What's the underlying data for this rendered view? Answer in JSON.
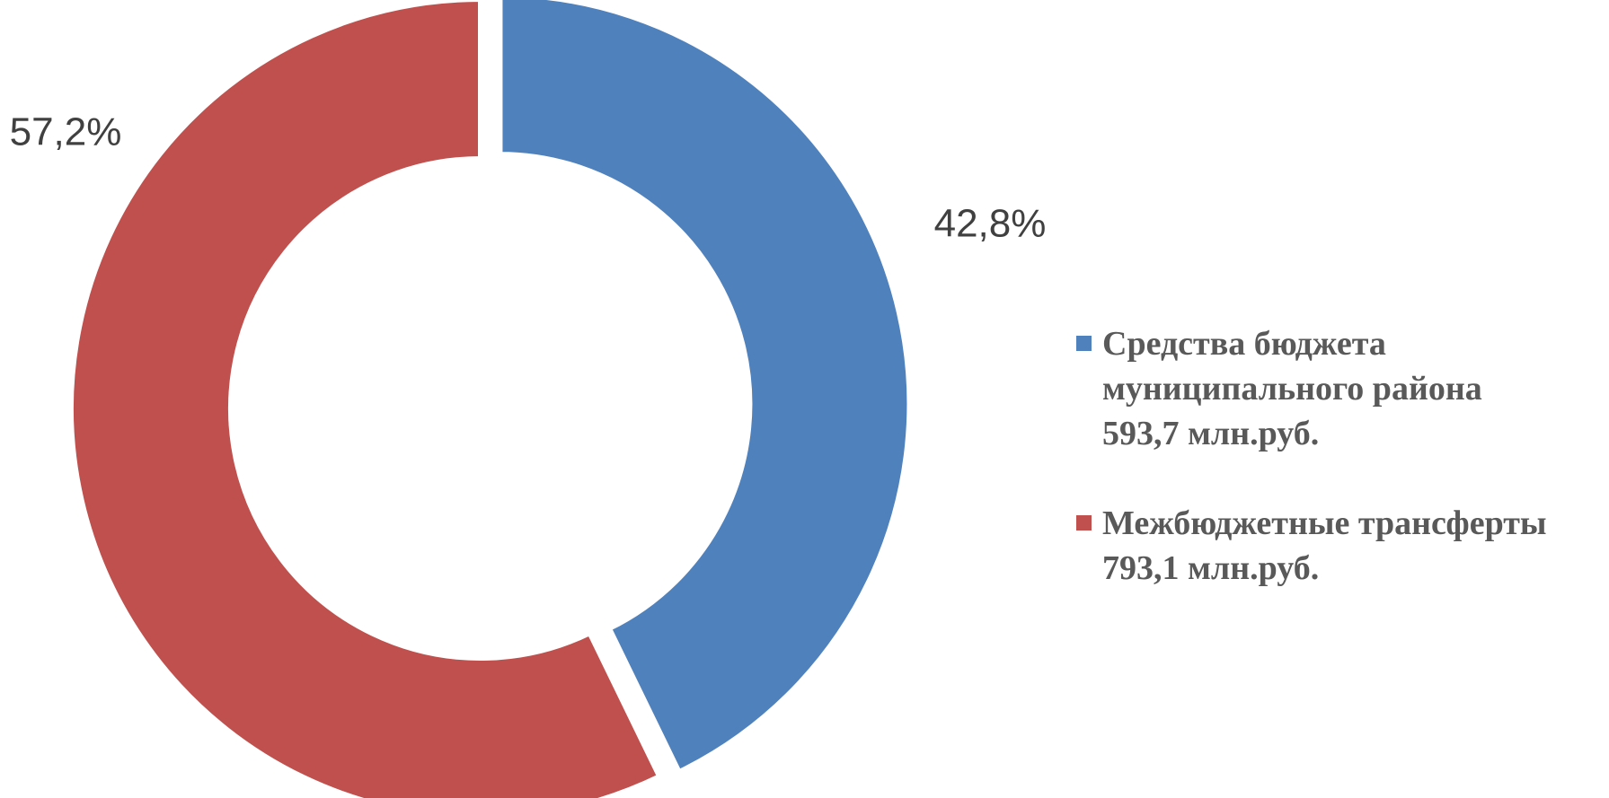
{
  "chart_data": {
    "type": "pie",
    "subtype": "donut",
    "title": "",
    "slices": [
      {
        "value": 42.8,
        "label": "42,8%",
        "legend_lines": [
          "Средства бюджета",
          "муниципального  района",
          "593,7 млн.руб."
        ],
        "color": "#4F81BD"
      },
      {
        "value": 57.2,
        "label": "57,2%",
        "legend_lines": [
          "Межбюджетные трансферты",
          "793,1 млн.руб."
        ],
        "color": "#C0504D"
      }
    ],
    "legend_position": "right"
  }
}
